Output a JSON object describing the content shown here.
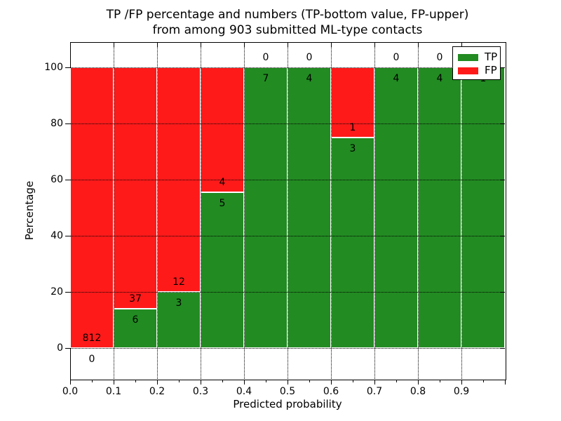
{
  "chart_data": {
    "type": "bar",
    "stacked": true,
    "title_line1": "TP /FP percentage and numbers (TP-bottom value, FP-upper)",
    "title_line2": "from among 903 submitted ML-type contacts",
    "xlabel": "Predicted probability",
    "ylabel": "Percentage",
    "total_contacts": 903,
    "xlim": [
      0.0,
      1.0
    ],
    "ylim": [
      -11,
      109
    ],
    "bin_width": 0.1,
    "x_bins": [
      0.0,
      0.1,
      0.2,
      0.3,
      0.4,
      0.5,
      0.6,
      0.7,
      0.8,
      0.9
    ],
    "x_tick_labels": [
      "0.0",
      "0.1",
      "0.2",
      "0.3",
      "0.4",
      "0.5",
      "0.6",
      "0.7",
      "0.8",
      "0.9"
    ],
    "y_ticks": [
      0,
      20,
      40,
      60,
      80,
      100
    ],
    "y_tick_labels": [
      "0",
      "20",
      "40",
      "60",
      "80",
      "100"
    ],
    "grid": "dotted",
    "bar_edge_color": "#ffffff",
    "legend_position": "upper right",
    "series": [
      {
        "name": "TP",
        "color": "#228b22",
        "stack_position": "bottom",
        "values": [
          0,
          6,
          3,
          5,
          7,
          4,
          3,
          4,
          4,
          1
        ]
      },
      {
        "name": "FP",
        "color": "#ff1a1a",
        "stack_position": "top",
        "values": [
          812,
          37,
          12,
          4,
          0,
          0,
          1,
          0,
          0,
          0
        ]
      }
    ]
  }
}
